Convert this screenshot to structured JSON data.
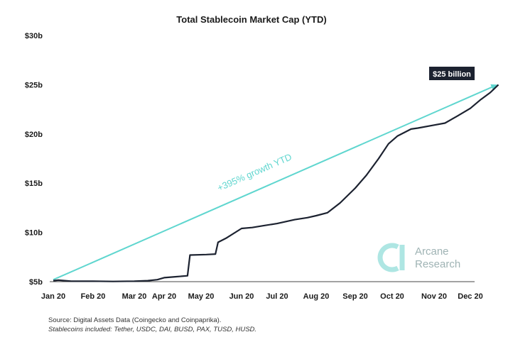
{
  "chart_data": {
    "type": "line",
    "title": "Total Stablecoin Market Cap (YTD)",
    "xlabel": "",
    "ylabel": "",
    "x_ticks": [
      "Jan 20",
      "Feb 20",
      "Mar 20",
      "Apr 20",
      "May 20",
      "Jun 20",
      "Jul 20",
      "Aug 20",
      "Sep 20",
      "Oct 20",
      "Nov 20",
      "Dec 20"
    ],
    "y_ticks": [
      "$5b",
      "$10b",
      "$15b",
      "$20b",
      "$25b",
      "$30b"
    ],
    "ylim": [
      5,
      30
    ],
    "grid": false,
    "series": [
      {
        "color": "#1c2230",
        "points": [
          [
            "2020-01-01",
            5.1
          ],
          [
            "2020-01-05",
            5.15
          ],
          [
            "2020-01-15",
            5.05
          ],
          [
            "2020-02-01",
            5.05
          ],
          [
            "2020-02-15",
            5.02
          ],
          [
            "2020-03-01",
            5.05
          ],
          [
            "2020-03-15",
            5.1
          ],
          [
            "2020-03-25",
            5.2
          ],
          [
            "2020-04-01",
            5.4
          ],
          [
            "2020-04-10",
            5.5
          ],
          [
            "2020-04-20",
            5.6
          ],
          [
            "2020-04-22",
            7.7
          ],
          [
            "2020-05-05",
            7.75
          ],
          [
            "2020-05-12",
            7.8
          ],
          [
            "2020-05-14",
            9.0
          ],
          [
            "2020-05-20",
            9.4
          ],
          [
            "2020-06-01",
            10.4
          ],
          [
            "2020-06-10",
            10.5
          ],
          [
            "2020-06-20",
            10.7
          ],
          [
            "2020-07-01",
            10.9
          ],
          [
            "2020-07-15",
            11.3
          ],
          [
            "2020-07-25",
            11.5
          ],
          [
            "2020-08-01",
            11.7
          ],
          [
            "2020-08-10",
            12.0
          ],
          [
            "2020-08-20",
            13.0
          ],
          [
            "2020-09-01",
            14.5
          ],
          [
            "2020-09-10",
            15.8
          ],
          [
            "2020-09-20",
            17.5
          ],
          [
            "2020-09-28",
            19.0
          ],
          [
            "2020-10-05",
            19.8
          ],
          [
            "2020-10-15",
            20.5
          ],
          [
            "2020-10-20",
            20.6
          ],
          [
            "2020-11-01",
            20.9
          ],
          [
            "2020-11-10",
            21.1
          ],
          [
            "2020-11-20",
            21.8
          ],
          [
            "2020-12-01",
            22.6
          ],
          [
            "2020-12-10",
            23.5
          ],
          [
            "2020-12-18",
            24.2
          ],
          [
            "2020-12-25",
            25.0
          ]
        ]
      }
    ],
    "trend_arrow": {
      "color": "#5fd6cf",
      "from": [
        "2020-01-01",
        5.2
      ],
      "to": [
        "2020-12-25",
        25.0
      ],
      "label": "+395% growth YTD"
    },
    "end_label": "$25 billion",
    "watermark": {
      "line1": "Arcane",
      "line2": "Research",
      "color": "#aee6e3"
    }
  },
  "source": {
    "line1": "Source: Digital Assets Data (Coingecko and Coinpaprika).",
    "line2": "Stablecoins included: Tether, USDC, DAI, BUSD, PAX, TUSD, HUSD."
  }
}
